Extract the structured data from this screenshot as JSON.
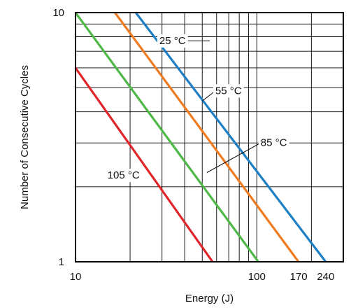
{
  "chart_data": {
    "type": "line",
    "title": "",
    "xlabel": "Energy (J)",
    "ylabel": "Number of Consecutive Cycles",
    "xscale": "log",
    "yscale": "log",
    "xlim": [
      10,
      300
    ],
    "ylim": [
      1,
      10
    ],
    "grid": true,
    "x_ticks": [
      {
        "value": 10,
        "label": "10"
      },
      {
        "value": 100,
        "label": "100"
      },
      {
        "value": 170,
        "label": "170"
      },
      {
        "value": 240,
        "label": "240"
      }
    ],
    "y_ticks": [
      {
        "value": 1,
        "label": "1"
      },
      {
        "value": 10,
        "label": "10"
      }
    ],
    "series": [
      {
        "name": "25 °C",
        "color": "#1f7fc4",
        "points": [
          [
            21.5,
            10
          ],
          [
            240,
            1
          ]
        ]
      },
      {
        "name": "55 °C",
        "color": "#f07c22",
        "points": [
          [
            16.5,
            10
          ],
          [
            170,
            1
          ]
        ]
      },
      {
        "name": "85 °C",
        "color": "#4fb848",
        "points": [
          [
            10,
            10
          ],
          [
            102,
            1
          ]
        ]
      },
      {
        "name": "105 °C",
        "color": "#e0262b",
        "points": [
          [
            10,
            6
          ],
          [
            57,
            1
          ]
        ]
      }
    ],
    "annotations": [
      {
        "label": "25 °C",
        "series": "25 °C",
        "text_at": [
          29,
          7.7
        ],
        "leader": [
          [
            37.5,
            7.7
          ],
          [
            55,
            7.7
          ]
        ]
      },
      {
        "label": "55 °C",
        "series": "55 °C",
        "text_at": [
          59,
          4.85
        ],
        "leader": [
          [
            50,
            4.42
          ],
          [
            59,
            4.85
          ]
        ]
      },
      {
        "label": "85 °C",
        "series": "85 °C",
        "text_at": [
          105,
          3.0
        ],
        "leader": [
          [
            53,
            2.28
          ],
          [
            105,
            3.0
          ]
        ]
      },
      {
        "label": "105 °C",
        "series": "105 °C",
        "text_at": [
          15,
          2.22
        ],
        "leader": []
      }
    ]
  }
}
